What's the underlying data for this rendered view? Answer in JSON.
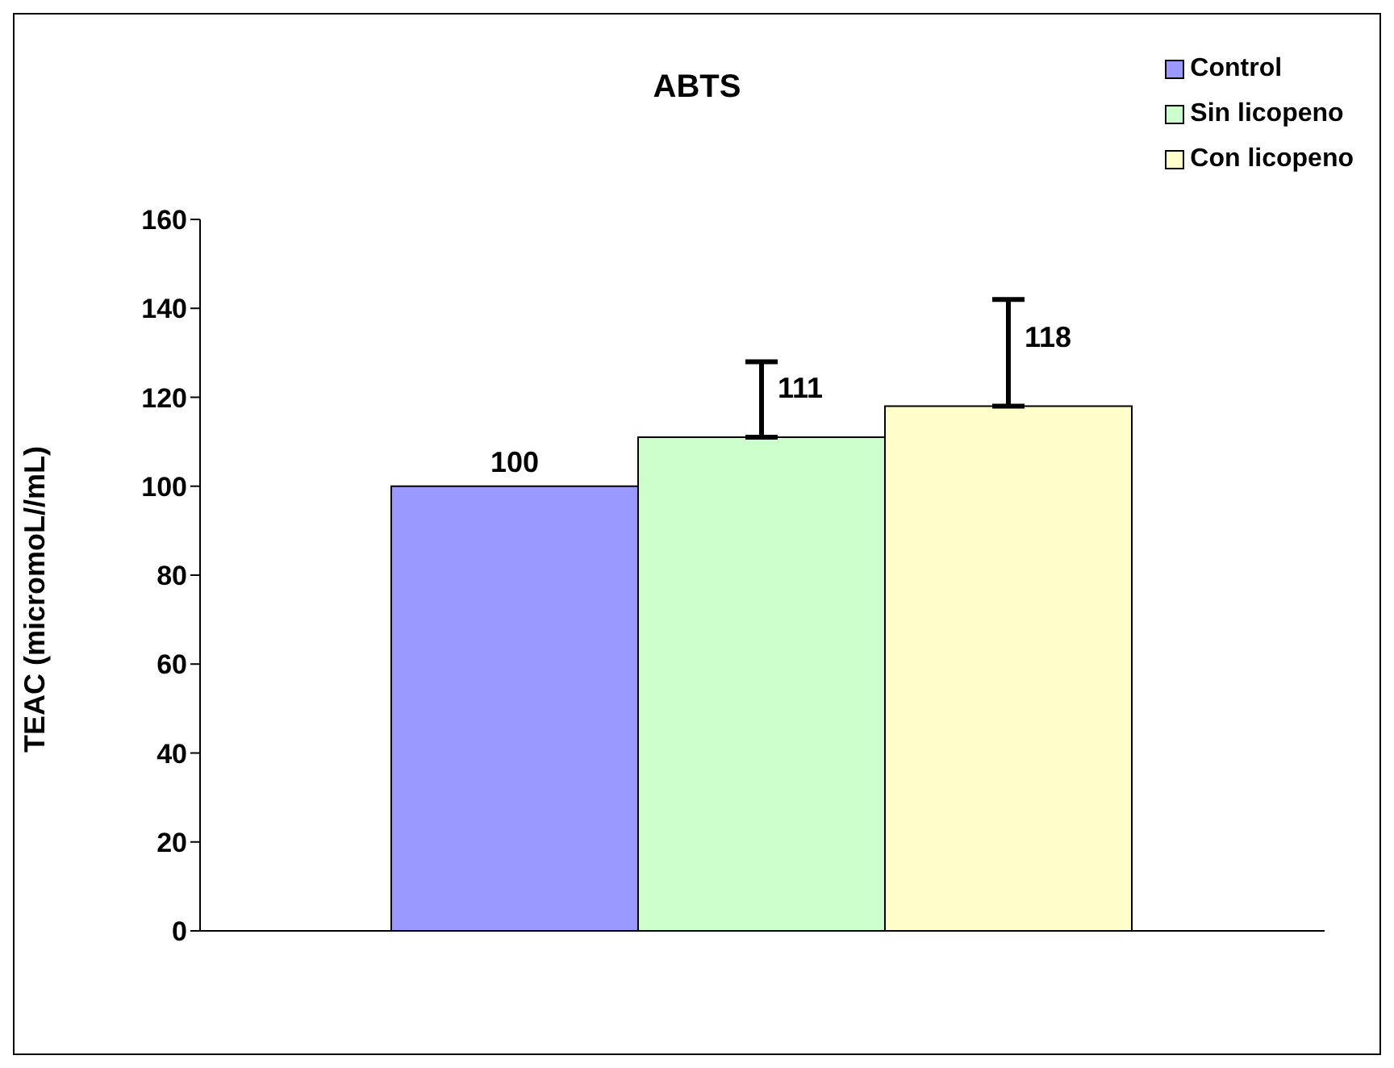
{
  "chart_data": {
    "type": "bar",
    "title": "ABTS",
    "ylabel": "TEAC (micromoL//mL)",
    "categories": [
      null
    ],
    "series": [
      {
        "name": "Control",
        "color": "#9999ff",
        "values": [
          100
        ],
        "errors": [
          null
        ]
      },
      {
        "name": "Sin licopeno",
        "color": "#ccffcc",
        "values": [
          111
        ],
        "errors": [
          [
            111,
            128
          ]
        ]
      },
      {
        "name": "Con licopeno",
        "color": "#ffffcc",
        "values": [
          118
        ],
        "errors": [
          [
            118,
            142
          ]
        ]
      }
    ],
    "ylim": [
      0,
      160
    ],
    "yticks": [
      0,
      20,
      40,
      60,
      80,
      100,
      120,
      140,
      160
    ],
    "grid": false,
    "legend": "top right",
    "data_labels": true
  }
}
